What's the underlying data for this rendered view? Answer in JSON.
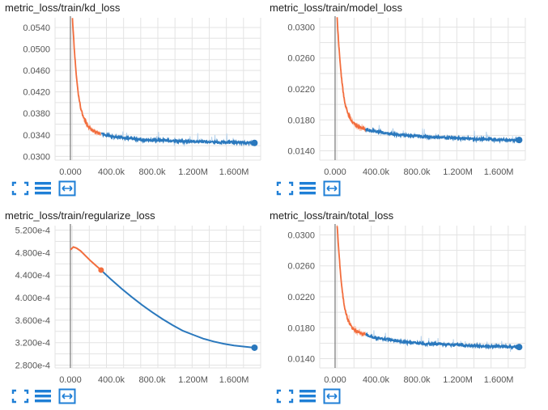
{
  "colors": {
    "smoothed_before": "#f26d3d",
    "raw_before": "#fbc3ad",
    "smoothed_after": "#2a78bd",
    "raw_after": "#b5d2ec",
    "grid": "#e3e3e3",
    "zero_line": "#8a8a8a",
    "icon": "#1f7fd6"
  },
  "toolbar_icons": [
    "fullscreen-icon",
    "list-icon",
    "fit-domain-icon"
  ],
  "chart_data": [
    {
      "type": "line",
      "title": "metric_loss/train/kd_loss",
      "xlim": [
        -150000,
        1860000
      ],
      "ylim": [
        0.0293,
        0.0558
      ],
      "xticks": [
        0,
        400000,
        800000,
        1200000,
        1600000
      ],
      "xtick_labels": [
        "0.000",
        "400.0k",
        "800.0k",
        "1.200M",
        "1.600M"
      ],
      "yticks": [
        0.03,
        0.034,
        0.038,
        0.042,
        0.046,
        0.05,
        0.054
      ],
      "ytick_labels": [
        "0.0300",
        "0.0340",
        "0.0380",
        "0.0420",
        "0.0460",
        "0.0500",
        "0.0540"
      ],
      "highlight_x": 300000,
      "marker_x": 1800000,
      "series": [
        {
          "x": [
            20000,
            40000,
            60000,
            80000,
            100000,
            130000,
            160000,
            200000,
            250000,
            300000,
            350000,
            400000,
            500000,
            600000,
            700000,
            800000,
            900000,
            1000000,
            1100000,
            1200000,
            1300000,
            1400000,
            1500000,
            1600000,
            1700000,
            1800000
          ],
          "y": [
            0.0558,
            0.0495,
            0.0445,
            0.0412,
            0.039,
            0.0372,
            0.036,
            0.035,
            0.0345,
            0.0342,
            0.0339,
            0.0337,
            0.0335,
            0.0333,
            0.0331,
            0.033,
            0.033,
            0.0329,
            0.0328,
            0.0328,
            0.0327,
            0.0327,
            0.0326,
            0.0326,
            0.0325,
            0.0325
          ]
        }
      ]
    },
    {
      "type": "line",
      "title": "metric_loss/train/model_loss",
      "xlim": [
        -150000,
        1860000
      ],
      "ylim": [
        0.0128,
        0.0312
      ],
      "xticks": [
        0,
        400000,
        800000,
        1200000,
        1600000
      ],
      "xtick_labels": [
        "0.000",
        "400.0k",
        "800.0k",
        "1.200M",
        "1.600M"
      ],
      "yticks": [
        0.014,
        0.018,
        0.022,
        0.026,
        0.03
      ],
      "ytick_labels": [
        "0.0140",
        "0.0180",
        "0.0220",
        "0.0260",
        "0.0300"
      ],
      "highlight_x": 300000,
      "marker_x": 1800000,
      "series": [
        {
          "x": [
            20000,
            40000,
            60000,
            80000,
            100000,
            130000,
            160000,
            200000,
            250000,
            300000,
            350000,
            400000,
            500000,
            600000,
            700000,
            800000,
            900000,
            1000000,
            1100000,
            1200000,
            1300000,
            1400000,
            1500000,
            1600000,
            1700000,
            1800000
          ],
          "y": [
            0.0312,
            0.027,
            0.0238,
            0.0215,
            0.0199,
            0.0187,
            0.0179,
            0.0173,
            0.017,
            0.0168,
            0.0166,
            0.0165,
            0.0163,
            0.0161,
            0.016,
            0.0159,
            0.0158,
            0.0158,
            0.0157,
            0.0156,
            0.0156,
            0.0155,
            0.0155,
            0.0154,
            0.0154,
            0.0154
          ]
        }
      ]
    },
    {
      "type": "line",
      "title": "metric_loss/train/regularize_loss",
      "xlim": [
        -150000,
        1860000
      ],
      "ylim": [
        0.000275,
        0.000528
      ],
      "xticks": [
        0,
        400000,
        800000,
        1200000,
        1600000
      ],
      "xtick_labels": [
        "0.000",
        "400.0k",
        "800.0k",
        "1.200M",
        "1.600M"
      ],
      "yticks": [
        0.00028,
        0.00032,
        0.00036,
        0.0004,
        0.00044,
        0.00048,
        0.00052
      ],
      "ytick_labels": [
        "2.800e-4",
        "3.200e-4",
        "3.600e-4",
        "4.000e-4",
        "4.400e-4",
        "4.800e-4",
        "5.200e-4"
      ],
      "highlight_x": 300000,
      "marker_x": 1800000,
      "smooth": true,
      "series": [
        {
          "x": [
            0,
            30000,
            60000,
            100000,
            150000,
            200000,
            250000,
            300000,
            400000,
            500000,
            600000,
            700000,
            800000,
            900000,
            1000000,
            1100000,
            1200000,
            1300000,
            1400000,
            1500000,
            1600000,
            1700000,
            1800000
          ],
          "y": [
            0.000485,
            0.00049,
            0.000488,
            0.000483,
            0.000474,
            0.000465,
            0.000457,
            0.000449,
            0.000432,
            0.000416,
            0.000401,
            0.000387,
            0.000374,
            0.000362,
            0.000351,
            0.000341,
            0.000334,
            0.000327,
            0.000322,
            0.000318,
            0.000315,
            0.000313,
            0.000311
          ]
        }
      ]
    },
    {
      "type": "line",
      "title": "metric_loss/train/total_loss",
      "xlim": [
        -150000,
        1860000
      ],
      "ylim": [
        0.0128,
        0.0312
      ],
      "xticks": [
        0,
        400000,
        800000,
        1200000,
        1600000
      ],
      "xtick_labels": [
        "0.000",
        "400.0k",
        "800.0k",
        "1.200M",
        "1.600M"
      ],
      "yticks": [
        0.014,
        0.018,
        0.022,
        0.026,
        0.03
      ],
      "ytick_labels": [
        "0.0140",
        "0.0180",
        "0.0220",
        "0.0260",
        "0.0300"
      ],
      "highlight_x": 300000,
      "marker_x": 1800000,
      "series": [
        {
          "x": [
            20000,
            40000,
            60000,
            80000,
            100000,
            130000,
            160000,
            200000,
            250000,
            300000,
            350000,
            400000,
            500000,
            600000,
            700000,
            800000,
            900000,
            1000000,
            1100000,
            1200000,
            1300000,
            1400000,
            1500000,
            1600000,
            1700000,
            1800000
          ],
          "y": [
            0.0312,
            0.0272,
            0.024,
            0.0217,
            0.0201,
            0.0189,
            0.0181,
            0.0176,
            0.0173,
            0.0171,
            0.0169,
            0.0167,
            0.0165,
            0.0163,
            0.0161,
            0.016,
            0.0159,
            0.0159,
            0.0158,
            0.0158,
            0.0157,
            0.0157,
            0.0156,
            0.0156,
            0.0155,
            0.0155
          ]
        }
      ]
    }
  ]
}
